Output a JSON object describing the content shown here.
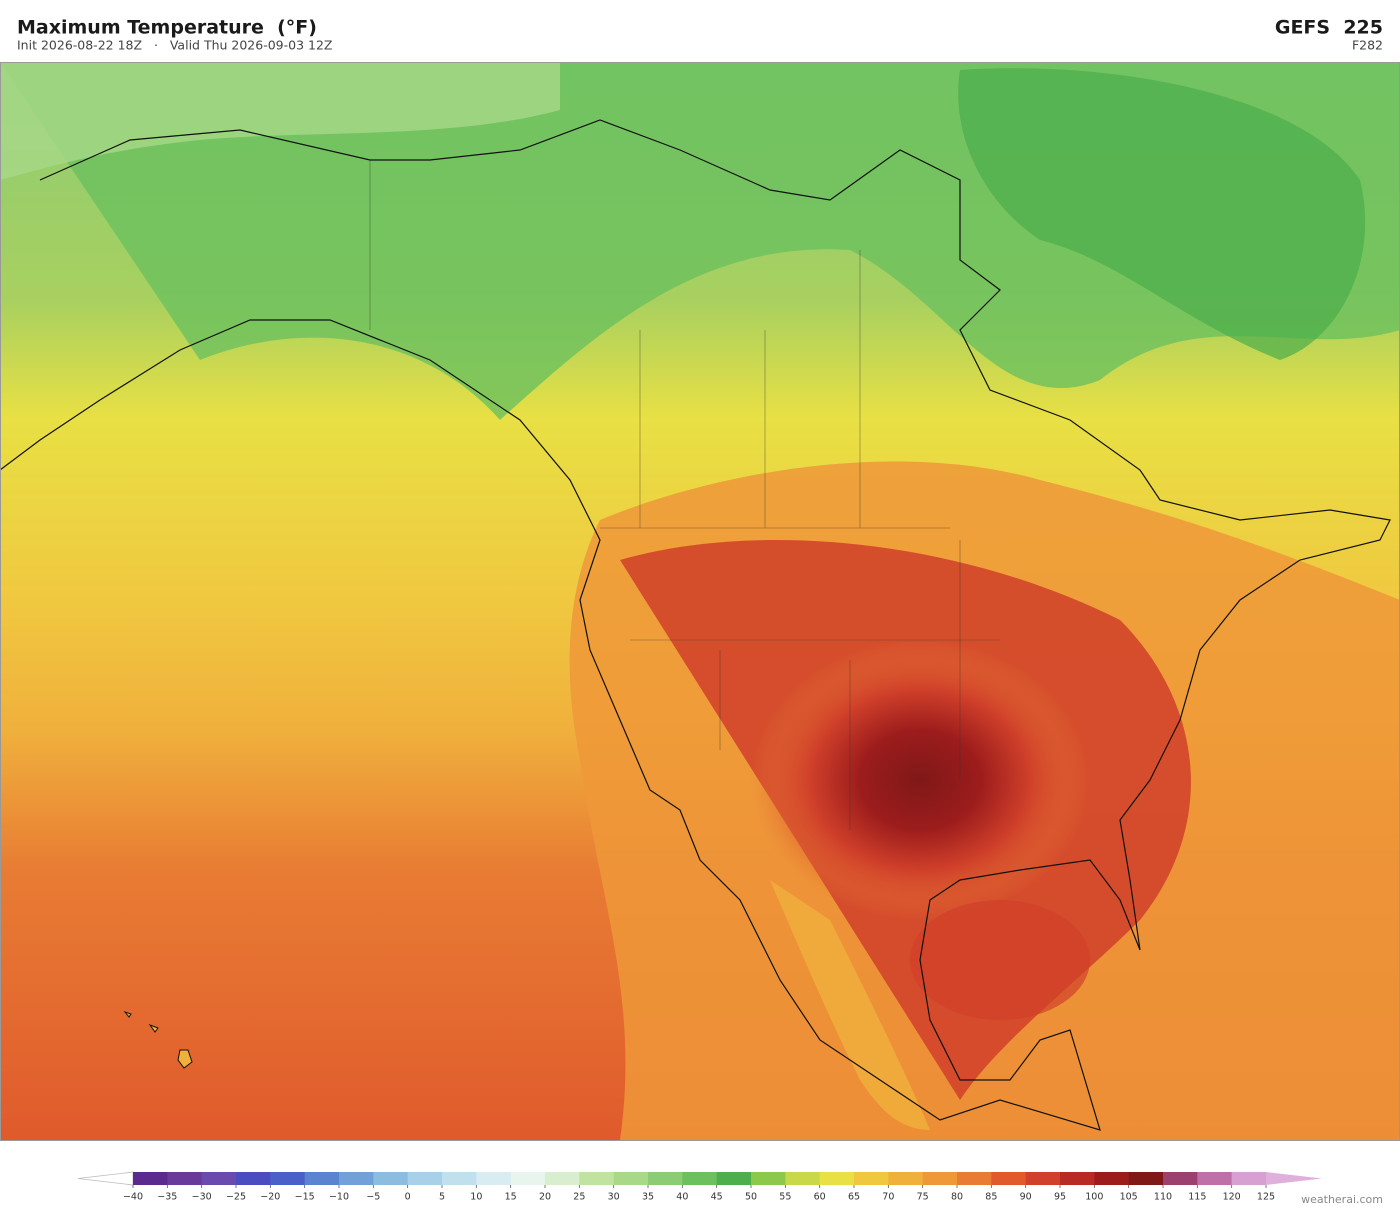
{
  "header": {
    "title": "Maximum Temperature  (°F)",
    "subtitle": "Init 2026-08-22 18Z   ·   Valid Thu 2026-09-03 12Z",
    "model": "GEFS  225",
    "forecast_hour": "F282"
  },
  "colorbar": {
    "ticks": [
      {
        "value": -40,
        "label": "−40"
      },
      {
        "value": -35,
        "label": "−35"
      },
      {
        "value": -30,
        "label": "−30"
      },
      {
        "value": -25,
        "label": "−25"
      },
      {
        "value": -20,
        "label": "−20"
      },
      {
        "value": -15,
        "label": "−15"
      },
      {
        "value": -10,
        "label": "−10"
      },
      {
        "value": -5,
        "label": "−5"
      },
      0,
      5,
      10,
      15,
      20,
      25,
      30,
      35,
      40,
      45,
      50,
      55,
      60,
      65,
      70,
      75,
      80,
      85,
      90,
      95,
      100,
      105,
      110,
      115,
      120,
      125
    ],
    "colors": [
      "#5b2a8e",
      "#6a3a9a",
      "#6b4aae",
      "#4a4cc0",
      "#4a60c8",
      "#5b84d0",
      "#72a0d8",
      "#8cbce0",
      "#a8d0e8",
      "#c0e0ee",
      "#d8ecf2",
      "#e8f4ee",
      "#d8eecf",
      "#c0e4a0",
      "#a8d888",
      "#8ccc74",
      "#6cc05e",
      "#4cae4c",
      "#8cc84c",
      "#c8d848",
      "#e8e044",
      "#f0c840",
      "#f0b03c",
      "#ee9838",
      "#e87c34",
      "#e05a2c",
      "#d0402a",
      "#b82a24",
      "#9c1c1c",
      "#801818",
      "#9c4070",
      "#c070a8",
      "#d8a0d0"
    ],
    "under_color": "#ffffff",
    "over_color": "#e0b0dc"
  },
  "footer": {
    "watermark": "weatherai.com"
  }
}
